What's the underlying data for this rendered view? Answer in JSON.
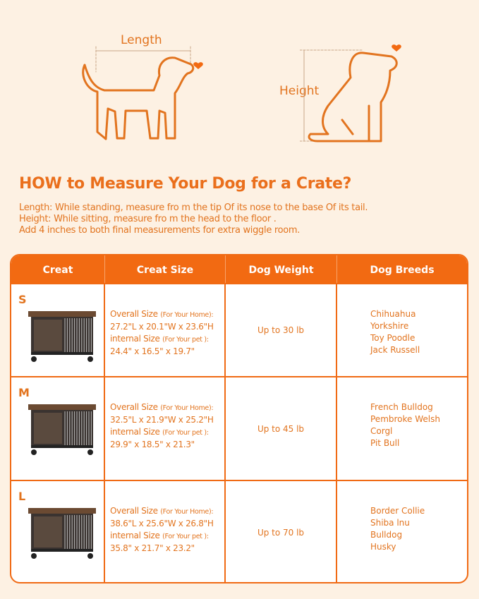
{
  "diagram": {
    "length_label": "Length",
    "height_label": "Height"
  },
  "title": "HOW to Measure Your Dog for a Crate?",
  "instructions": [
    "Length: While standing, measure fro m the tip Of its nose to the base Of its tail.",
    "Height: While sitting, measure fro m the head to the floor .",
    "Add 4 inches to both final measurements for extra wiggle room."
  ],
  "colors": {
    "accent": "#f26a12",
    "text": "#e2741f",
    "background": "#fdf1e3"
  },
  "table": {
    "headers": [
      "Creat",
      "Creat Size",
      "Dog Weight",
      "Dog Breeds"
    ],
    "rows": [
      {
        "size": "S",
        "overall_label": "Overall Size",
        "overall_note": "(For Your Home):",
        "overall": "27.2\"L x 20.1\"W x 23.6\"H",
        "internal_label": "internal Size",
        "internal_note": "(For Your pet ):",
        "internal": "24.4\" x 16.5\" x 19.7\"",
        "weight": "Up to 30 lb",
        "breeds": [
          "Chihuahua",
          "Yorkshire",
          "Toy Poodle",
          "Jack Russell"
        ]
      },
      {
        "size": "M",
        "overall_label": "Overall Size",
        "overall_note": "(For Your Home):",
        "overall": "32.5\"L x 21.9\"W x 25.2\"H",
        "internal_label": "internal Size",
        "internal_note": "(For Your pet ):",
        "internal": "29.9\" x 18.5\" x 21.3\"",
        "weight": "Up to 45 lb",
        "breeds": [
          "French Bulldog",
          "Pembroke Welsh",
          "Corgl",
          "Pit Bull"
        ]
      },
      {
        "size": "L",
        "overall_label": "Overall Size",
        "overall_note": "(For Your Home):",
        "overall": "38.6\"L x 25.6\"W x 26.8\"H",
        "internal_label": "internal Size",
        "internal_note": "(For Your pet ):",
        "internal": "35.8\" x 21.7\" x 23.2\"",
        "weight": "Up to 70 lb",
        "breeds": [
          "Border Collie",
          "Shiba lnu",
          "Bulldog",
          "Husky"
        ]
      }
    ]
  }
}
